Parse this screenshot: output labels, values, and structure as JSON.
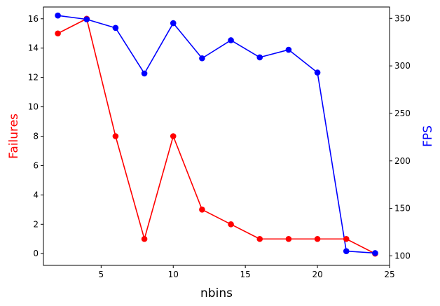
{
  "chart_data": {
    "type": "line",
    "xlabel": "nbins",
    "x": [
      2,
      4,
      6,
      8,
      10,
      12,
      14,
      16,
      18,
      20,
      22,
      24
    ],
    "xlim": [
      1.0,
      25.0
    ],
    "xticks": [
      5,
      10,
      15,
      20,
      25
    ],
    "left_axis": {
      "label": "Failures",
      "color": "#ff0000",
      "ylim": [
        -0.8,
        16.8
      ],
      "ticks": [
        0,
        2,
        4,
        6,
        8,
        10,
        12,
        14,
        16
      ]
    },
    "right_axis": {
      "label": "FPS",
      "color": "#0000ff",
      "ylim": [
        90,
        362
      ],
      "ticks": [
        100,
        150,
        200,
        250,
        300,
        350
      ]
    },
    "series": [
      {
        "axis": "left",
        "color": "#ff0000",
        "values": [
          15,
          16,
          8,
          1,
          8,
          3,
          2,
          1,
          1,
          1,
          1,
          0
        ]
      },
      {
        "axis": "right",
        "color": "#0000ff",
        "values": [
          353,
          349,
          340,
          292,
          345,
          308,
          327,
          309,
          317,
          293,
          105,
          103
        ]
      }
    ],
    "grid": false
  }
}
